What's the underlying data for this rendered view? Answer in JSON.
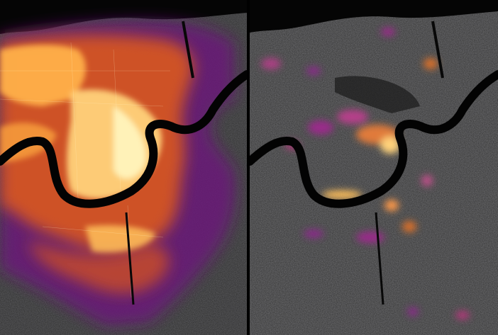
{
  "panels": [
    {
      "key": "left",
      "state": "before",
      "light_level": 1.0
    },
    {
      "key": "right",
      "state": "after",
      "light_level": 0.25
    }
  ],
  "colors": {
    "background": "#000000",
    "ground": "#3a3a3a",
    "ground_dark": "#1e1e1e",
    "water": "#060606",
    "light_low": "#2a0b4a",
    "light_mid": "#7a1f7a",
    "light_high": "#e8772a",
    "light_peak": "#ffe8a0"
  }
}
